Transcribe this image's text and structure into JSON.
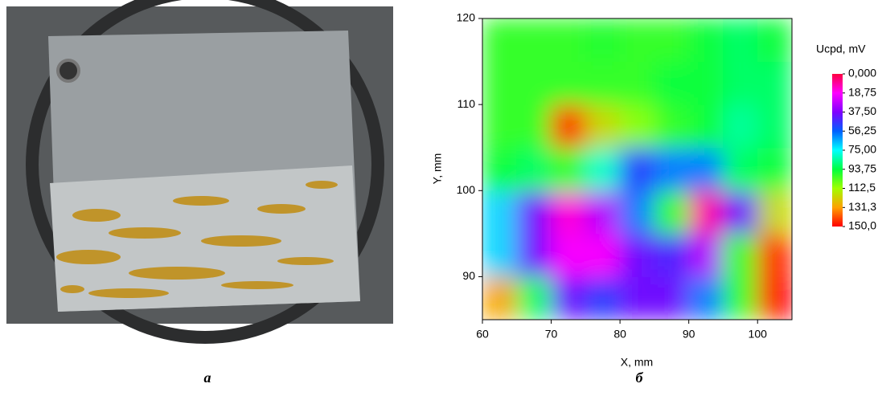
{
  "panel_labels": [
    "а",
    "б"
  ],
  "chart_data": {
    "type": "heatmap",
    "xlabel": "X, mm",
    "ylabel": "Y, mm",
    "x": [
      62.5,
      67.5,
      72.5,
      77.5,
      82.5,
      87.5,
      92.5,
      97.5,
      102.5
    ],
    "y": [
      87.5,
      92.5,
      97.5,
      102.5,
      107.5,
      112.5,
      117.5
    ],
    "values": [
      [
        130,
        90,
        40,
        50,
        40,
        40,
        60,
        100,
        150
      ],
      [
        70,
        40,
        20,
        20,
        40,
        45,
        30,
        100,
        145
      ],
      [
        70,
        40,
        15,
        30,
        60,
        100,
        10,
        40,
        120
      ],
      [
        95,
        90,
        100,
        80,
        50,
        60,
        60,
        90,
        95
      ],
      [
        100,
        100,
        145,
        120,
        110,
        100,
        95,
        85,
        90
      ],
      [
        100,
        100,
        100,
        100,
        100,
        95,
        95,
        90,
        90
      ],
      [
        100,
        100,
        100,
        98,
        100,
        100,
        95,
        90,
        95
      ]
    ],
    "xlim": [
      60,
      105
    ],
    "ylim": [
      85,
      120
    ],
    "xticks": [
      60,
      70,
      80,
      90,
      100
    ],
    "yticks": [
      90,
      100,
      110,
      120
    ],
    "colorbar": {
      "title": "Ucpd, mV",
      "ticks": [
        {
          "value": 0,
          "label": "0,000"
        },
        {
          "value": 18.75,
          "label": "18,75"
        },
        {
          "value": 37.5,
          "label": "37,50"
        },
        {
          "value": 56.25,
          "label": "56,25"
        },
        {
          "value": 75,
          "label": "75,00"
        },
        {
          "value": 93.75,
          "label": "93,75"
        },
        {
          "value": 112.5,
          "label": "112,5"
        },
        {
          "value": 131.3,
          "label": "131,3"
        },
        {
          "value": 150,
          "label": "150,0"
        }
      ],
      "colors": [
        "#ff0040",
        "#ff00ff",
        "#8000ff",
        "#0060ff",
        "#00ffff",
        "#00ff40",
        "#a0ff00",
        "#ffa000",
        "#ff0000"
      ]
    }
  }
}
